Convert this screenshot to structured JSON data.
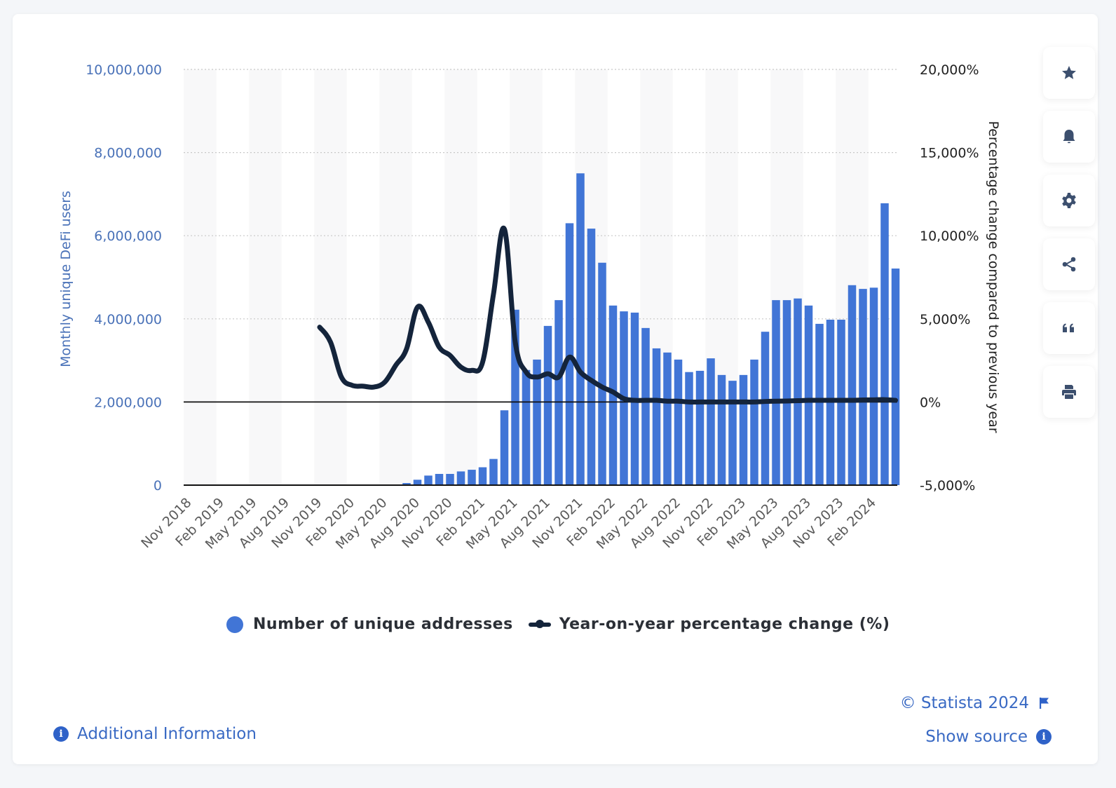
{
  "chart_data": {
    "type": "bar",
    "title": "",
    "xlabel": "",
    "ylabel": "Monthly unique DeFi users",
    "y2label": "Percentage change compared to previous year",
    "ylim": [
      0,
      10000000
    ],
    "y2lim": [
      -5000,
      20000
    ],
    "grid": true,
    "legend_position": "bottom-center",
    "left_ticks": [
      "0",
      "2,000,000",
      "4,000,000",
      "6,000,000",
      "8,000,000",
      "10,000,000"
    ],
    "left_tick_values": [
      0,
      2000000,
      4000000,
      6000000,
      8000000,
      10000000
    ],
    "right_ticks": [
      "-5,000%",
      "0%",
      "5,000%",
      "10,000%",
      "15,000%",
      "20,000%"
    ],
    "right_tick_values": [
      -5000,
      0,
      5000,
      10000,
      15000,
      20000
    ],
    "x_tick_labels": [
      "Nov 2018",
      "Feb 2019",
      "May 2019",
      "Aug 2019",
      "Nov 2019",
      "Feb 2020",
      "May 2020",
      "Aug 2020",
      "Nov 2020",
      "Feb 2021",
      "May 2021",
      "Aug 2021",
      "Nov 2021",
      "Feb 2022",
      "May 2022",
      "Aug 2022",
      "Nov 2022",
      "Feb 2023",
      "May 2023",
      "Aug 2023",
      "Nov 2023",
      "Feb 2024"
    ],
    "months": [
      "Nov 2018",
      "Dec 2018",
      "Jan 2019",
      "Feb 2019",
      "Mar 2019",
      "Apr 2019",
      "May 2019",
      "Jun 2019",
      "Jul 2019",
      "Aug 2019",
      "Sep 2019",
      "Oct 2019",
      "Nov 2019",
      "Dec 2019",
      "Jan 2020",
      "Feb 2020",
      "Mar 2020",
      "Apr 2020",
      "May 2020",
      "Jun 2020",
      "Jul 2020",
      "Aug 2020",
      "Sep 2020",
      "Oct 2020",
      "Nov 2020",
      "Dec 2020",
      "Jan 2021",
      "Feb 2021",
      "Mar 2021",
      "Apr 2021",
      "May 2021",
      "Jun 2021",
      "Jul 2021",
      "Aug 2021",
      "Sep 2021",
      "Oct 2021",
      "Nov 2021",
      "Dec 2021",
      "Jan 2022",
      "Feb 2022",
      "Mar 2022",
      "Apr 2022",
      "May 2022",
      "Jun 2022",
      "Jul 2022",
      "Aug 2022",
      "Sep 2022",
      "Oct 2022",
      "Nov 2022",
      "Dec 2022",
      "Jan 2023",
      "Feb 2023",
      "Mar 2023",
      "Apr 2023",
      "May 2023",
      "Jun 2023",
      "Jul 2023",
      "Aug 2023",
      "Sep 2023",
      "Oct 2023",
      "Nov 2023",
      "Dec 2023",
      "Jan 2024",
      "Feb 2024",
      "Mar 2024",
      "Apr 2024"
    ],
    "series": [
      {
        "name": "Number of unique addresses",
        "type": "bar",
        "axis": "left",
        "color": "#4175d6",
        "values": [
          null,
          null,
          null,
          null,
          null,
          null,
          null,
          null,
          null,
          null,
          null,
          null,
          null,
          null,
          null,
          null,
          null,
          null,
          null,
          null,
          50000,
          130000,
          230000,
          270000,
          270000,
          330000,
          370000,
          430000,
          630000,
          1800000,
          4220000,
          2770000,
          3020000,
          3830000,
          4450000,
          6300000,
          7500000,
          6170000,
          5350000,
          4320000,
          4180000,
          4150000,
          3780000,
          3290000,
          3190000,
          3020000,
          2720000,
          2750000,
          3050000,
          2650000,
          2510000,
          2650000,
          3020000,
          3690000,
          4450000,
          4450000,
          4490000,
          4320000,
          3880000,
          3980000,
          3980000,
          4810000,
          4720000,
          4750000,
          6780000,
          5210000
        ]
      },
      {
        "name": "Year-on-year percentage change (%)",
        "type": "line",
        "axis": "right",
        "color": "#14243b",
        "values": [
          null,
          null,
          null,
          null,
          null,
          null,
          null,
          null,
          null,
          null,
          null,
          null,
          4500,
          3600,
          1500,
          1000,
          950,
          900,
          1200,
          2200,
          3200,
          5700,
          4800,
          3300,
          2800,
          2100,
          1900,
          2400,
          6500,
          10400,
          3600,
          1800,
          1500,
          1700,
          1500,
          2700,
          1800,
          1300,
          900,
          600,
          200,
          100,
          100,
          100,
          50,
          50,
          0,
          0,
          0,
          0,
          0,
          0,
          0,
          30,
          50,
          60,
          80,
          100,
          100,
          100,
          100,
          100,
          120,
          130,
          140,
          100
        ]
      }
    ]
  },
  "legend": {
    "items": [
      {
        "label": "Number of unique addresses",
        "color": "#4175d6"
      },
      {
        "label": "Year-on-year percentage change (%)",
        "color": "#14243b"
      }
    ]
  },
  "sidebar": {
    "buttons": [
      {
        "icon": "star-icon",
        "label": "Favorite"
      },
      {
        "icon": "bell-icon",
        "label": "Notifications"
      },
      {
        "icon": "gear-icon",
        "label": "Settings"
      },
      {
        "icon": "share-icon",
        "label": "Share"
      },
      {
        "icon": "quote-icon",
        "label": "Cite"
      },
      {
        "icon": "print-icon",
        "label": "Print"
      }
    ]
  },
  "footer": {
    "additional_info": "Additional Information",
    "copyright": "© Statista 2024",
    "show_source": "Show source",
    "info_glyph": "i"
  }
}
